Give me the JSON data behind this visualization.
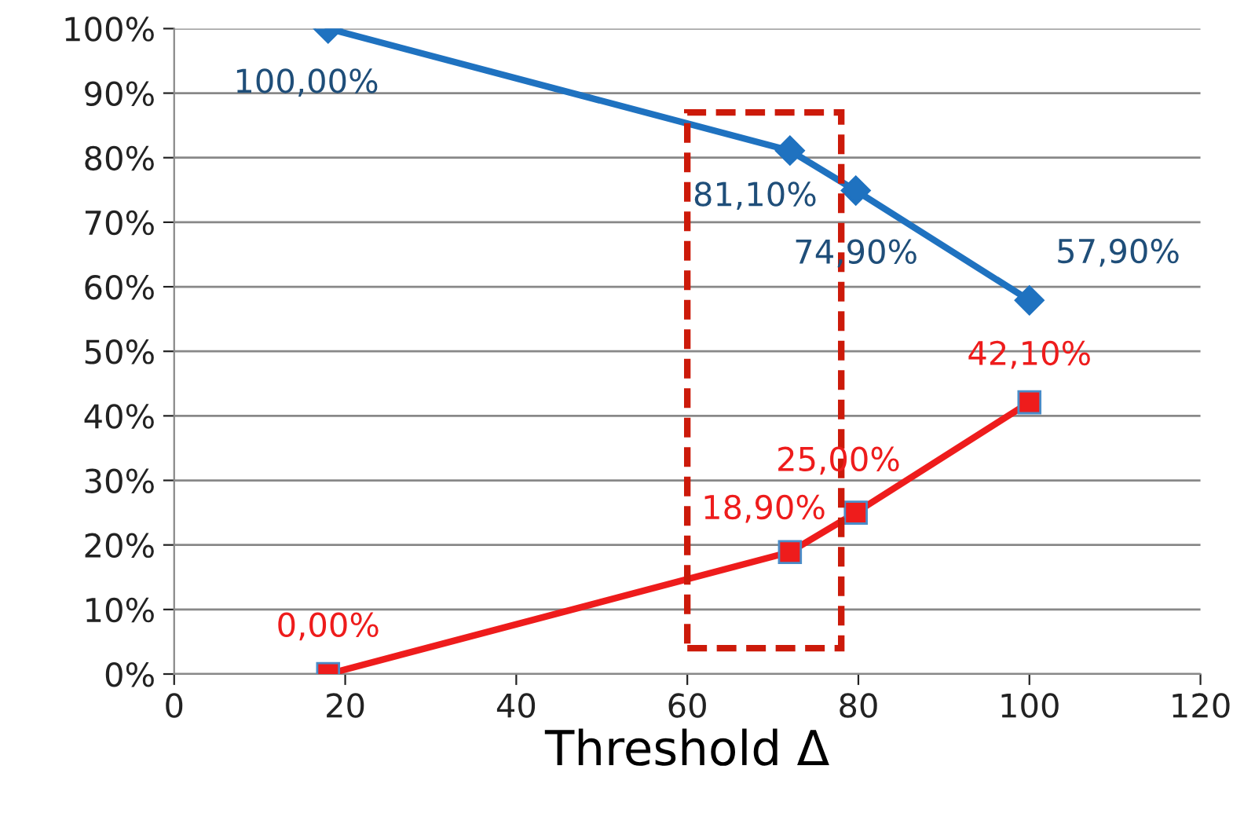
{
  "chart_data": {
    "type": "line",
    "xlabel": "Threshold Δ",
    "x": [
      18,
      72,
      79.7,
      100
    ],
    "series": [
      {
        "color": "#1f72c0",
        "marker": "diamond",
        "values": [
          100,
          81.1,
          74.9,
          57.9
        ],
        "value_labels": [
          "100,00%",
          "81,10%",
          "74,90%",
          "57,90%"
        ]
      },
      {
        "color": "#ee1c1c",
        "marker": "square",
        "values": [
          0,
          18.9,
          25,
          42.1
        ],
        "value_labels": [
          "0,00%",
          "18,90%",
          "25,00%",
          "42,10%"
        ]
      }
    ],
    "xlim": [
      0,
      120
    ],
    "xticks": [
      0,
      20,
      40,
      60,
      80,
      100,
      120
    ],
    "ylim": [
      0,
      100
    ],
    "yticks": [
      {
        "value": 0,
        "label": "0%"
      },
      {
        "value": 10,
        "label": "10%"
      },
      {
        "value": 20,
        "label": "20%"
      },
      {
        "value": 30,
        "label": "30%"
      },
      {
        "value": 40,
        "label": "40%"
      },
      {
        "value": 50,
        "label": "50%"
      },
      {
        "value": 60,
        "label": "60%"
      },
      {
        "value": 70,
        "label": "70%"
      },
      {
        "value": 80,
        "label": "80%"
      },
      {
        "value": 90,
        "label": "90%"
      },
      {
        "value": 100,
        "label": "100%"
      }
    ],
    "grid": "y",
    "line_style": "solid"
  }
}
